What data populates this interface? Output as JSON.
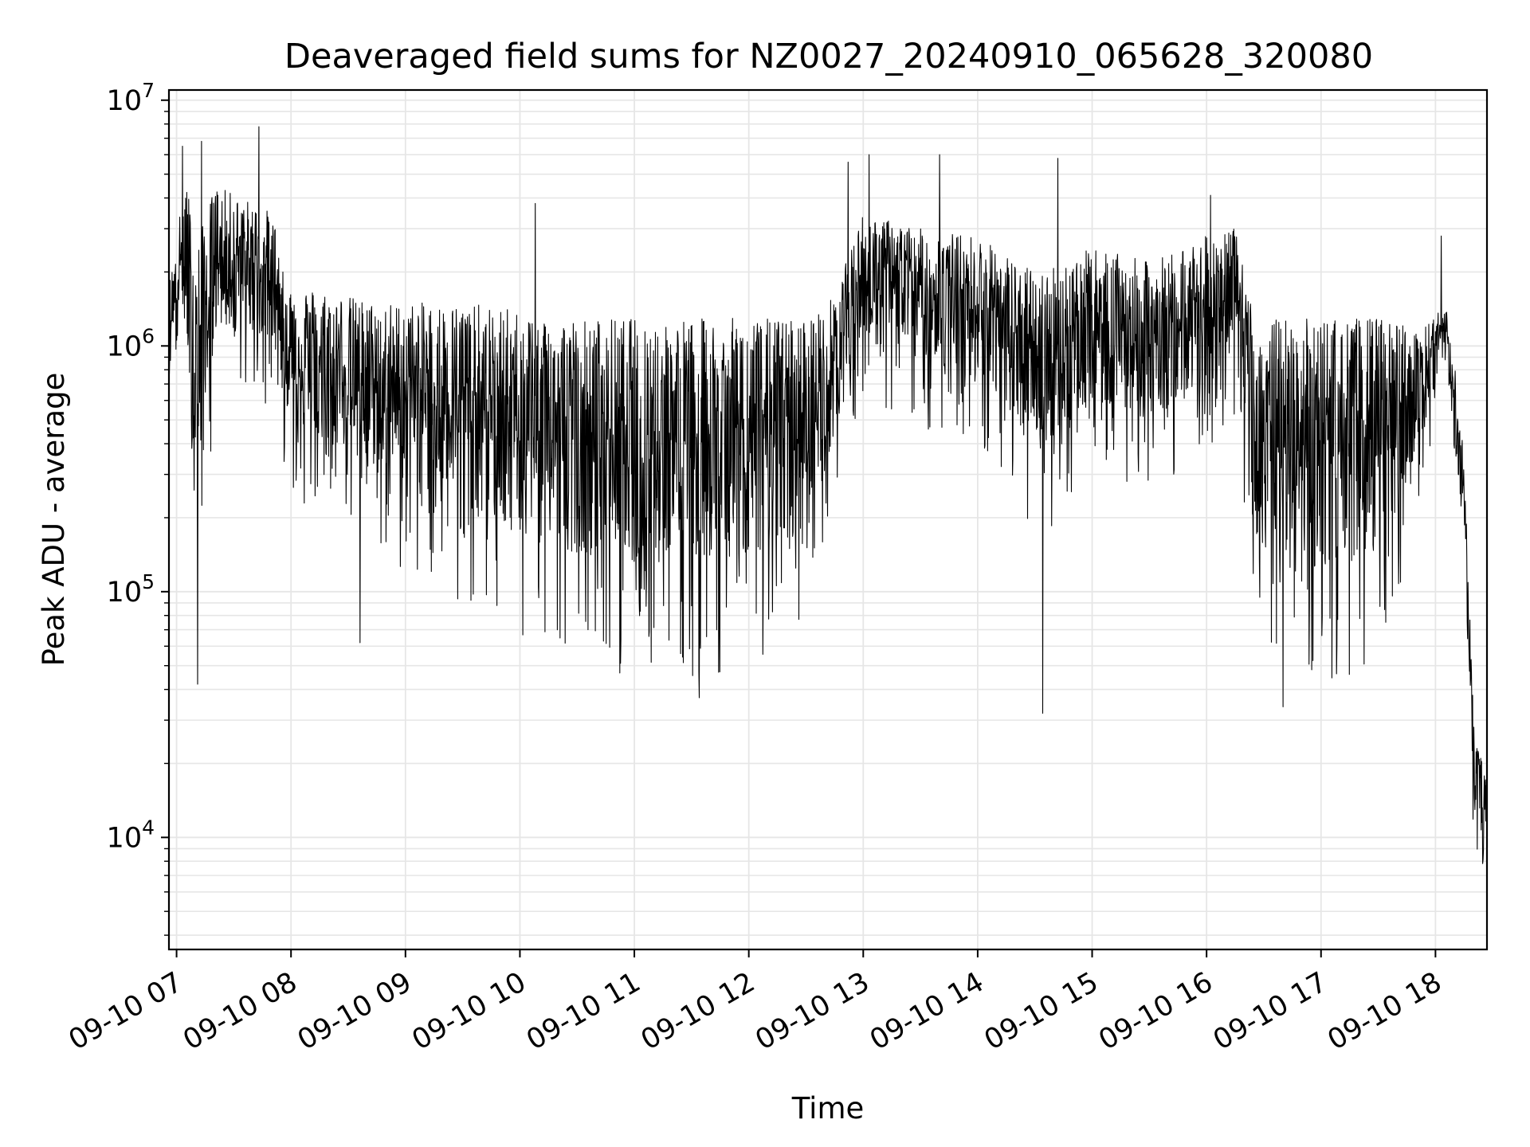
{
  "chart_data": {
    "type": "line",
    "title": "Deaveraged field sums for NZ0027_20240910_065628_320080",
    "xlabel": "Time",
    "ylabel": "Peak ADU - average",
    "yscale": "log",
    "ylim": [
      3500,
      11000000
    ],
    "xlim": [
      "2024-09-10 06:56",
      "2024-09-10 18:27"
    ],
    "grid": true,
    "line_color": "#000000",
    "grid_color": "#e6e6e6",
    "x_ticks": [
      {
        "t": "2024-09-10 07:00",
        "label": "09-10 07"
      },
      {
        "t": "2024-09-10 08:00",
        "label": "09-10 08"
      },
      {
        "t": "2024-09-10 09:00",
        "label": "09-10 09"
      },
      {
        "t": "2024-09-10 10:00",
        "label": "09-10 10"
      },
      {
        "t": "2024-09-10 11:00",
        "label": "09-10 11"
      },
      {
        "t": "2024-09-10 12:00",
        "label": "09-10 12"
      },
      {
        "t": "2024-09-10 13:00",
        "label": "09-10 13"
      },
      {
        "t": "2024-09-10 14:00",
        "label": "09-10 14"
      },
      {
        "t": "2024-09-10 15:00",
        "label": "09-10 15"
      },
      {
        "t": "2024-09-10 16:00",
        "label": "09-10 16"
      },
      {
        "t": "2024-09-10 17:00",
        "label": "09-10 17"
      },
      {
        "t": "2024-09-10 18:00",
        "label": "09-10 18"
      }
    ],
    "y_ticks": [
      {
        "value": 10000,
        "base": "10",
        "exp": "4"
      },
      {
        "value": 100000,
        "base": "10",
        "exp": "5"
      },
      {
        "value": 1000000,
        "base": "10",
        "exp": "6"
      },
      {
        "value": 10000000,
        "base": "10",
        "exp": "7"
      }
    ],
    "series": [
      {
        "envelope": [
          {
            "t": "2024-09-10 06:56",
            "upper": 1800000,
            "lower": 500000
          },
          {
            "t": "2024-09-10 07:05",
            "upper": 5000000,
            "lower": 700000
          },
          {
            "t": "2024-09-10 07:10",
            "upper": 2500000,
            "lower": 45000
          },
          {
            "t": "2024-09-10 07:20",
            "upper": 4500000,
            "lower": 600000
          },
          {
            "t": "2024-09-10 07:35",
            "upper": 4000000,
            "lower": 650000
          },
          {
            "t": "2024-09-10 07:50",
            "upper": 3500000,
            "lower": 550000
          },
          {
            "t": "2024-09-10 08:00",
            "upper": 1800000,
            "lower": 250000
          },
          {
            "t": "2024-09-10 08:15",
            "upper": 1700000,
            "lower": 200000
          },
          {
            "t": "2024-09-10 08:30",
            "upper": 1600000,
            "lower": 180000
          },
          {
            "t": "2024-09-10 08:45",
            "upper": 1500000,
            "lower": 150000
          },
          {
            "t": "2024-09-10 09:00",
            "upper": 1500000,
            "lower": 120000
          },
          {
            "t": "2024-09-10 09:30",
            "upper": 1500000,
            "lower": 90000
          },
          {
            "t": "2024-09-10 10:00",
            "upper": 1400000,
            "lower": 60000
          },
          {
            "t": "2024-09-10 10:30",
            "upper": 1300000,
            "lower": 50000
          },
          {
            "t": "2024-09-10 11:00",
            "upper": 1300000,
            "lower": 45000
          },
          {
            "t": "2024-09-10 11:30",
            "upper": 1300000,
            "lower": 45000
          },
          {
            "t": "2024-09-10 12:00",
            "upper": 1300000,
            "lower": 48000
          },
          {
            "t": "2024-09-10 12:30",
            "upper": 1300000,
            "lower": 50000
          },
          {
            "t": "2024-09-10 12:45",
            "upper": 1600000,
            "lower": 250000
          },
          {
            "t": "2024-09-10 13:00",
            "upper": 3500000,
            "lower": 600000
          },
          {
            "t": "2024-09-10 13:30",
            "upper": 3000000,
            "lower": 450000
          },
          {
            "t": "2024-09-10 14:00",
            "upper": 2800000,
            "lower": 400000
          },
          {
            "t": "2024-09-10 14:30",
            "upper": 2000000,
            "lower": 150000
          },
          {
            "t": "2024-09-10 15:00",
            "upper": 2500000,
            "lower": 300000
          },
          {
            "t": "2024-09-10 15:30",
            "upper": 2200000,
            "lower": 250000
          },
          {
            "t": "2024-09-10 16:00",
            "upper": 2800000,
            "lower": 350000
          },
          {
            "t": "2024-09-10 16:15",
            "upper": 3000000,
            "lower": 500000
          },
          {
            "t": "2024-09-10 16:25",
            "upper": 1300000,
            "lower": 60000
          },
          {
            "t": "2024-09-10 17:00",
            "upper": 1300000,
            "lower": 40000
          },
          {
            "t": "2024-09-10 17:30",
            "upper": 1300000,
            "lower": 50000
          },
          {
            "t": "2024-09-10 17:55",
            "upper": 1200000,
            "lower": 250000
          },
          {
            "t": "2024-09-10 18:05",
            "upper": 1500000,
            "lower": 800000
          },
          {
            "t": "2024-09-10 18:10",
            "upper": 900000,
            "lower": 180000
          },
          {
            "t": "2024-09-10 18:15",
            "upper": 350000,
            "lower": 200000
          },
          {
            "t": "2024-09-10 18:20",
            "upper": 30000,
            "lower": 9000
          },
          {
            "t": "2024-09-10 18:27",
            "upper": 20000,
            "lower": 7000
          }
        ],
        "peaks": [
          {
            "t": "2024-09-10 07:03",
            "value": 6500000
          },
          {
            "t": "2024-09-10 07:11",
            "value": 42000
          },
          {
            "t": "2024-09-10 07:13",
            "value": 6800000
          },
          {
            "t": "2024-09-10 07:43",
            "value": 7800000
          },
          {
            "t": "2024-09-10 08:36",
            "value": 62000
          },
          {
            "t": "2024-09-10 10:08",
            "value": 3800000
          },
          {
            "t": "2024-09-10 11:34",
            "value": 37000
          },
          {
            "t": "2024-09-10 12:52",
            "value": 5600000
          },
          {
            "t": "2024-09-10 13:03",
            "value": 6000000
          },
          {
            "t": "2024-09-10 13:40",
            "value": 6000000
          },
          {
            "t": "2024-09-10 14:34",
            "value": 32000
          },
          {
            "t": "2024-09-10 14:42",
            "value": 5800000
          },
          {
            "t": "2024-09-10 16:02",
            "value": 4100000
          },
          {
            "t": "2024-09-10 16:40",
            "value": 34000
          },
          {
            "t": "2024-09-10 18:03",
            "value": 2800000
          },
          {
            "t": "2024-09-10 18:27",
            "value": 7000
          }
        ]
      }
    ]
  }
}
